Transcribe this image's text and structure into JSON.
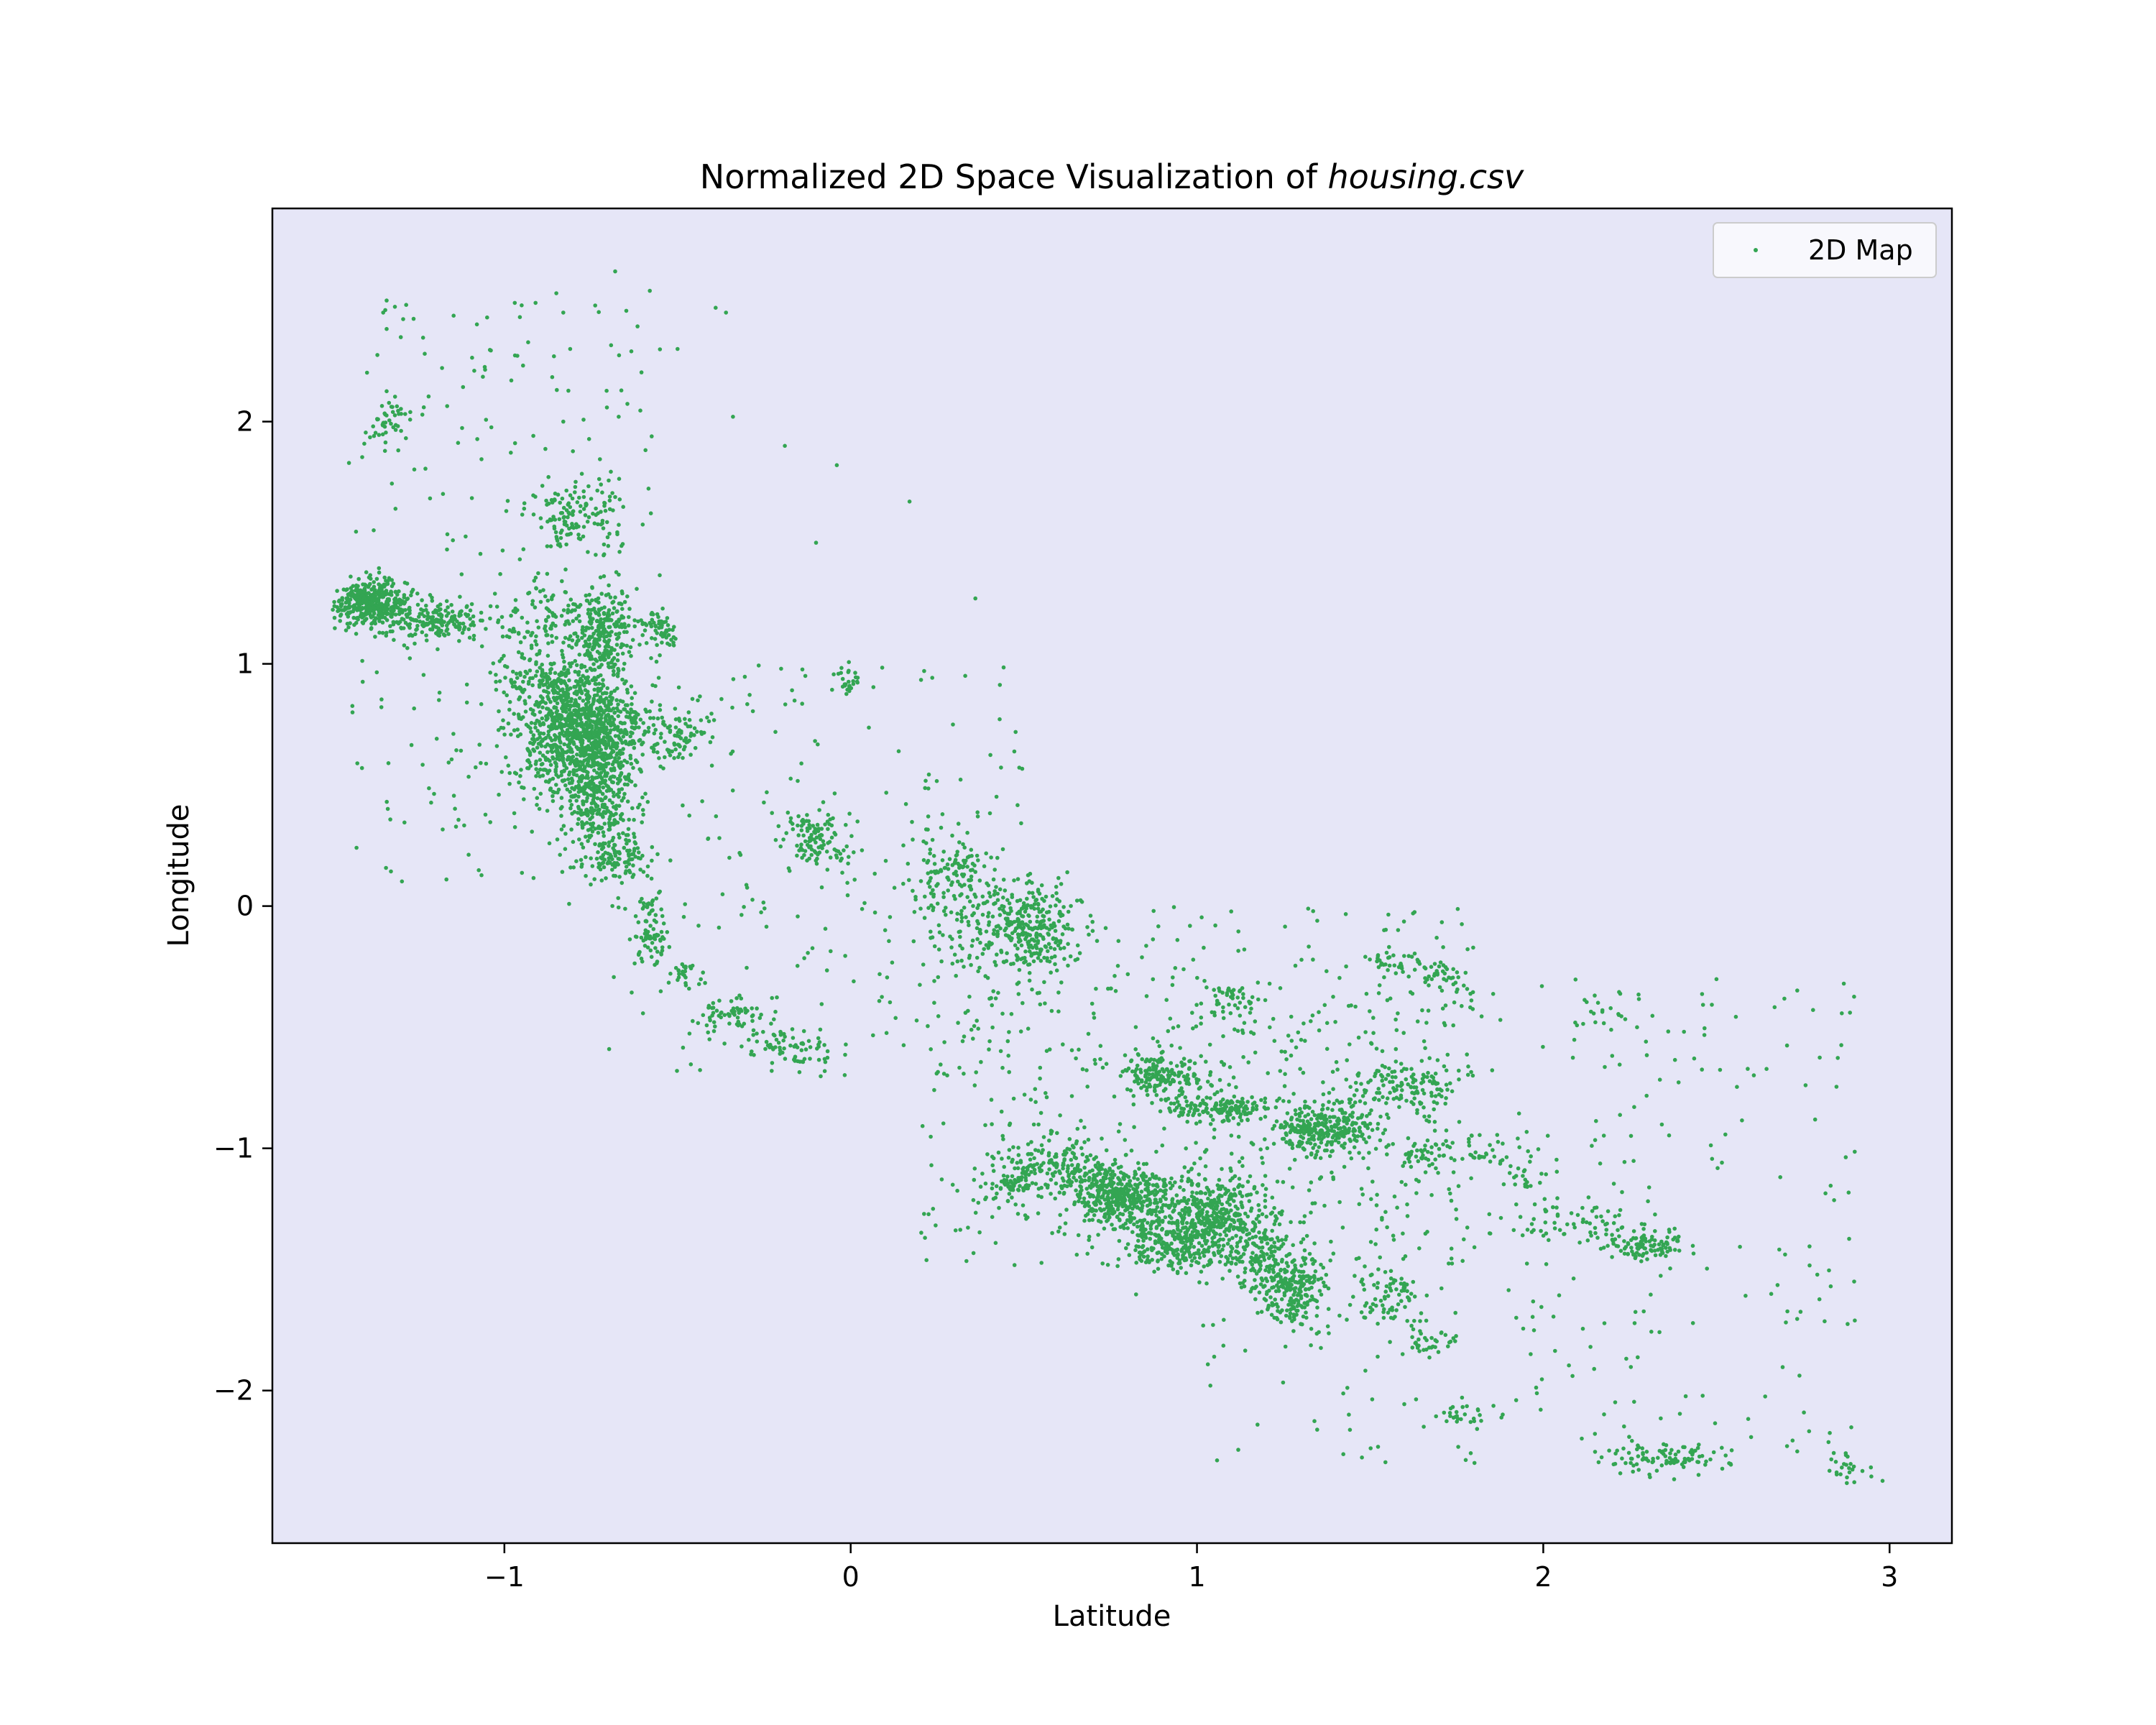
{
  "chart_data": {
    "type": "scatter",
    "title": "Normalized 2D Space Visualization of ",
    "title_italic": "housing.csv",
    "xlabel": "Latitude",
    "ylabel": "Longitude",
    "xlim": [
      -1.67,
      3.18
    ],
    "ylim": [
      -2.63,
      2.88
    ],
    "x_ticks": [
      -1,
      0,
      1,
      2,
      3
    ],
    "x_tick_labels": [
      "−1",
      "0",
      "1",
      "2",
      "3"
    ],
    "y_ticks": [
      -2,
      -1,
      0,
      1,
      2
    ],
    "y_tick_labels": [
      "−2",
      "−1",
      "0",
      "1",
      "2"
    ],
    "grid": false,
    "legend_position": "top-right",
    "series": [
      {
        "name": "2D Map",
        "color": "#33a552",
        "clusters": [
          {
            "x": -1.38,
            "y": 1.25,
            "sx": 0.05,
            "sy": 0.045,
            "n": 420
          },
          {
            "x": -1.2,
            "y": 1.18,
            "sx": 0.07,
            "sy": 0.04,
            "n": 180
          },
          {
            "x": -1.33,
            "y": 2.0,
            "sx": 0.03,
            "sy": 0.04,
            "n": 40
          },
          {
            "x": -0.78,
            "y": 0.72,
            "sx": 0.09,
            "sy": 0.13,
            "n": 1100
          },
          {
            "x": -0.73,
            "y": 0.45,
            "sx": 0.05,
            "sy": 0.15,
            "n": 320
          },
          {
            "x": -0.71,
            "y": 1.13,
            "sx": 0.04,
            "sy": 0.09,
            "n": 200
          },
          {
            "x": -0.85,
            "y": 1.15,
            "sx": 0.09,
            "sy": 0.1,
            "n": 180
          },
          {
            "x": -0.9,
            "y": 0.93,
            "sx": 0.05,
            "sy": 0.03,
            "n": 80
          },
          {
            "x": -0.66,
            "y": 0.2,
            "sx": 0.04,
            "sy": 0.04,
            "n": 80
          },
          {
            "x": -0.82,
            "y": 1.6,
            "sx": 0.04,
            "sy": 0.07,
            "n": 90
          },
          {
            "x": -0.7,
            "y": 1.62,
            "sx": 0.03,
            "sy": 0.08,
            "n": 40
          },
          {
            "x": -0.55,
            "y": 1.15,
            "sx": 0.03,
            "sy": 0.03,
            "n": 60
          },
          {
            "x": -0.49,
            "y": 0.72,
            "sx": 0.04,
            "sy": 0.06,
            "n": 70
          },
          {
            "x": -0.58,
            "y": -0.08,
            "sx": 0.025,
            "sy": 0.08,
            "n": 80
          },
          {
            "x": -0.48,
            "y": -0.28,
            "sx": 0.02,
            "sy": 0.03,
            "n": 25
          },
          {
            "x": -0.35,
            "y": -0.44,
            "sx": 0.05,
            "sy": 0.03,
            "n": 60
          },
          {
            "x": -0.2,
            "y": -0.56,
            "sx": 0.05,
            "sy": 0.03,
            "n": 40
          },
          {
            "x": -0.12,
            "y": -0.62,
            "sx": 0.04,
            "sy": 0.05,
            "n": 30
          },
          {
            "x": -0.1,
            "y": 0.28,
            "sx": 0.05,
            "sy": 0.05,
            "n": 110
          },
          {
            "x": 0.0,
            "y": 0.93,
            "sx": 0.02,
            "sy": 0.03,
            "n": 25
          },
          {
            "x": 0.3,
            "y": 0.15,
            "sx": 0.06,
            "sy": 0.08,
            "n": 120
          },
          {
            "x": 0.52,
            "y": -0.1,
            "sx": 0.07,
            "sy": 0.09,
            "n": 280
          },
          {
            "x": 0.38,
            "y": -0.05,
            "sx": 0.1,
            "sy": 0.1,
            "n": 90
          },
          {
            "x": 0.9,
            "y": -0.7,
            "sx": 0.06,
            "sy": 0.05,
            "n": 180
          },
          {
            "x": 1.1,
            "y": -0.4,
            "sx": 0.04,
            "sy": 0.04,
            "n": 40
          },
          {
            "x": 1.07,
            "y": -0.84,
            "sx": 0.08,
            "sy": 0.025,
            "n": 150
          },
          {
            "x": 1.37,
            "y": -0.92,
            "sx": 0.07,
            "sy": 0.05,
            "n": 280
          },
          {
            "x": 1.6,
            "y": -0.75,
            "sx": 0.08,
            "sy": 0.05,
            "n": 120
          },
          {
            "x": 1.55,
            "y": -0.22,
            "sx": 0.03,
            "sy": 0.025,
            "n": 30
          },
          {
            "x": 1.7,
            "y": -0.28,
            "sx": 0.04,
            "sy": 0.03,
            "n": 40
          },
          {
            "x": 1.65,
            "y": -1.02,
            "sx": 0.03,
            "sy": 0.03,
            "n": 40
          },
          {
            "x": 0.78,
            "y": -1.2,
            "sx": 0.08,
            "sy": 0.06,
            "n": 420
          },
          {
            "x": 0.95,
            "y": -1.38,
            "sx": 0.1,
            "sy": 0.07,
            "n": 380
          },
          {
            "x": 1.05,
            "y": -1.25,
            "sx": 0.07,
            "sy": 0.07,
            "n": 250
          },
          {
            "x": 0.6,
            "y": -1.08,
            "sx": 0.1,
            "sy": 0.05,
            "n": 180
          },
          {
            "x": 0.46,
            "y": -1.16,
            "sx": 0.03,
            "sy": 0.03,
            "n": 50
          },
          {
            "x": 1.27,
            "y": -1.57,
            "sx": 0.05,
            "sy": 0.07,
            "n": 220
          },
          {
            "x": 1.18,
            "y": -1.4,
            "sx": 0.05,
            "sy": 0.08,
            "n": 120
          },
          {
            "x": 1.55,
            "y": -1.62,
            "sx": 0.05,
            "sy": 0.06,
            "n": 80
          },
          {
            "x": 1.68,
            "y": -1.8,
            "sx": 0.04,
            "sy": 0.02,
            "n": 30
          },
          {
            "x": 1.77,
            "y": -2.1,
            "sx": 0.03,
            "sy": 0.02,
            "n": 20
          },
          {
            "x": 2.08,
            "y": -1.3,
            "sx": 0.1,
            "sy": 0.04,
            "n": 60
          },
          {
            "x": 2.3,
            "y": -1.4,
            "sx": 0.05,
            "sy": 0.03,
            "n": 100
          },
          {
            "x": 2.35,
            "y": -2.28,
            "sx": 0.1,
            "sy": 0.03,
            "n": 100
          },
          {
            "x": 2.88,
            "y": -2.32,
            "sx": 0.03,
            "sy": 0.03,
            "n": 25
          },
          {
            "x": 1.94,
            "y": -1.12,
            "sx": 0.03,
            "sy": 0.05,
            "n": 25
          },
          {
            "x": 1.82,
            "y": -1.0,
            "sx": 0.03,
            "sy": 0.04,
            "n": 20
          },
          {
            "x": 2.22,
            "y": -0.45,
            "sx": 0.05,
            "sy": 0.06,
            "n": 20
          }
        ],
        "background": [
          {
            "x0": -1.45,
            "x1": -0.55,
            "y0": 0.1,
            "y1": 2.5,
            "n": 260
          },
          {
            "x0": -0.7,
            "x1": 0.5,
            "y0": -0.7,
            "y1": 1.0,
            "n": 240
          },
          {
            "x0": 0.2,
            "x1": 1.8,
            "y0": -1.5,
            "y1": 0.0,
            "n": 520
          },
          {
            "x0": 1.0,
            "x1": 2.9,
            "y0": -2.3,
            "y1": -0.3,
            "n": 380
          }
        ],
        "points": [
          [
            -1.35,
            2.45
          ],
          [
            -1.34,
            2.5
          ],
          [
            -1.05,
            2.43
          ],
          [
            -0.95,
            2.48
          ],
          [
            -0.97,
            2.49
          ],
          [
            -0.91,
            2.49
          ],
          [
            -0.85,
            2.53
          ],
          [
            -0.81,
            2.3
          ],
          [
            -0.68,
            2.62
          ],
          [
            -0.58,
            2.54
          ],
          [
            -0.5,
            2.3
          ],
          [
            -0.39,
            2.47
          ],
          [
            -0.36,
            2.45
          ],
          [
            -0.34,
            2.02
          ],
          [
            -0.19,
            1.9
          ],
          [
            -0.04,
            1.82
          ],
          [
            -0.1,
            1.5
          ],
          [
            0.17,
            1.67
          ],
          [
            0.36,
            1.27
          ],
          [
            -1.23,
            2.28
          ],
          [
            -0.83,
            2.45
          ],
          [
            -0.98,
            2.17
          ],
          [
            -0.83,
            2.0
          ],
          [
            -0.67,
            2.02
          ]
        ]
      }
    ]
  }
}
